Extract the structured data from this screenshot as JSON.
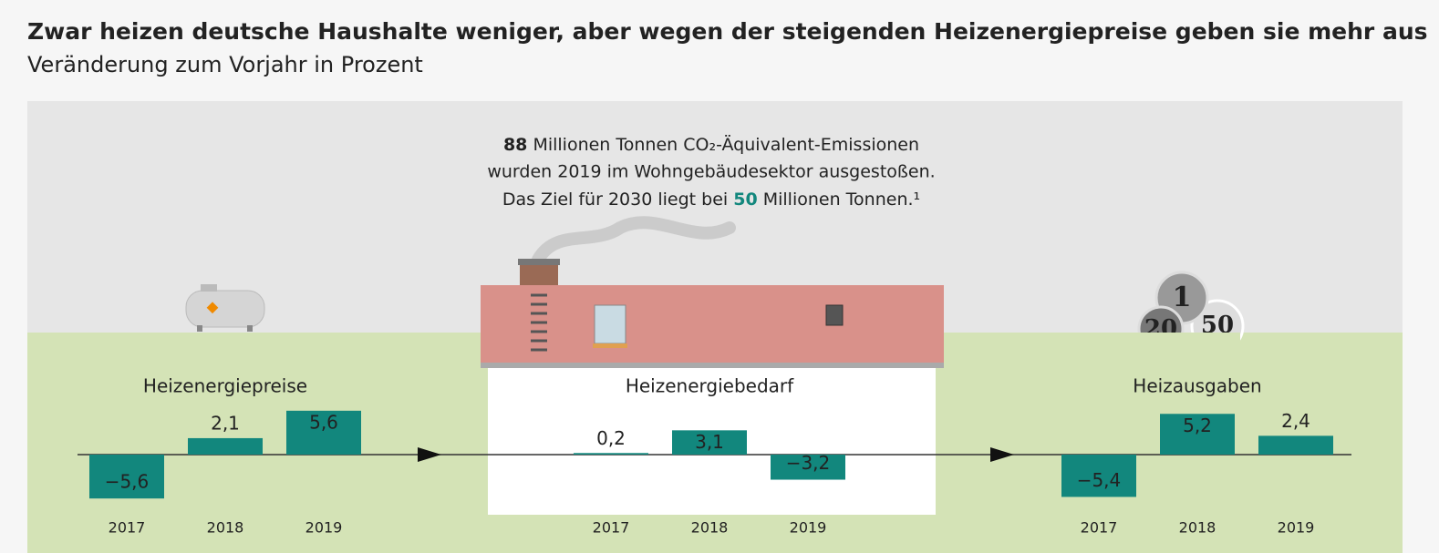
{
  "header": {
    "title": "Zwar heizen deutsche Haushalte weniger, aber wegen der steigenden Heizenergiepreise geben sie mehr aus",
    "subtitle": "Veränderung zum Vorjahr in Prozent"
  },
  "annotation": {
    "emissions": 88,
    "line1": "Millionen Tonnen CO₂-Äquivalent-Emissionen",
    "line2": "wurden 2019 im Wohngebäudesektor ausgestoßen.",
    "line3_start": "Das Ziel für 2030 liegt bei",
    "target": 50,
    "line3_end": "Millionen Tonnen.¹"
  },
  "chart_data": [
    {
      "type": "bar",
      "title": "Heizenergiepreise",
      "categories": [
        "2017",
        "2018",
        "2019"
      ],
      "values": [
        -5.6,
        2.1,
        5.6
      ],
      "value_labels": [
        "−5,6",
        "2,1",
        "5,6"
      ],
      "color": "#12877d"
    },
    {
      "type": "bar",
      "title": "Heizenergiebedarf",
      "categories": [
        "2017",
        "2018",
        "2019"
      ],
      "values": [
        0.2,
        3.1,
        -3.2
      ],
      "value_labels": [
        "0,2",
        "3,1",
        "−3,2"
      ],
      "color": "#12877d"
    },
    {
      "type": "bar",
      "title": "Heizausgaben",
      "categories": [
        "2017",
        "2018",
        "2019"
      ],
      "values": [
        -5.4,
        5.2,
        2.4
      ],
      "value_labels": [
        "−5,4",
        "5,2",
        "2,4"
      ],
      "color": "#12877d"
    }
  ]
}
